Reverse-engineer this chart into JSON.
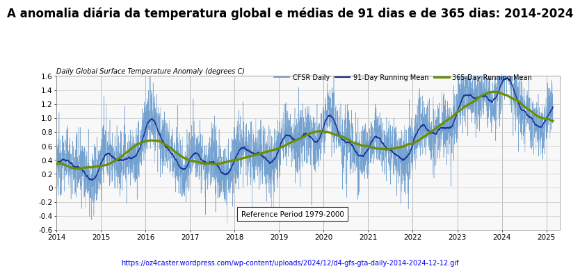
{
  "title": "A anomalia diária da temperatura global e médias de 91 dias e de 365 dias: 2014-2024",
  "subtitle": "Daily Global Surface Temperature Anomaly (degrees C)",
  "legend_labels": [
    "CFSR Daily",
    "91-Day Running Mean",
    "365-Day Running Mean"
  ],
  "legend_colors": [
    "#6699cc",
    "#1a3399",
    "#6b8e00"
  ],
  "url": "https://oz4caster.wordpress.com/wp-content/uploads/2024/12/d4-gfs-gta-daily-2014-2024-12-12.gif",
  "xlim": [
    2014.0,
    2025.3
  ],
  "ylim": [
    -0.6,
    1.6
  ],
  "yticks": [
    -0.6,
    -0.4,
    -0.2,
    0.0,
    0.2,
    0.4,
    0.6,
    0.8,
    1.0,
    1.2,
    1.4,
    1.6
  ],
  "xticks": [
    2014,
    2015,
    2016,
    2017,
    2018,
    2019,
    2020,
    2021,
    2022,
    2023,
    2024,
    2025
  ],
  "ref_box_text": "Reference Period 1979-2000",
  "background_color": "#ffffff",
  "plot_bg_color": "#f8f8f8",
  "grid_color": "#d0d0d0",
  "title_fontsize": 12,
  "subtitle_fontsize": 7,
  "tick_fontsize": 7.5,
  "url_color": "#0000ee"
}
